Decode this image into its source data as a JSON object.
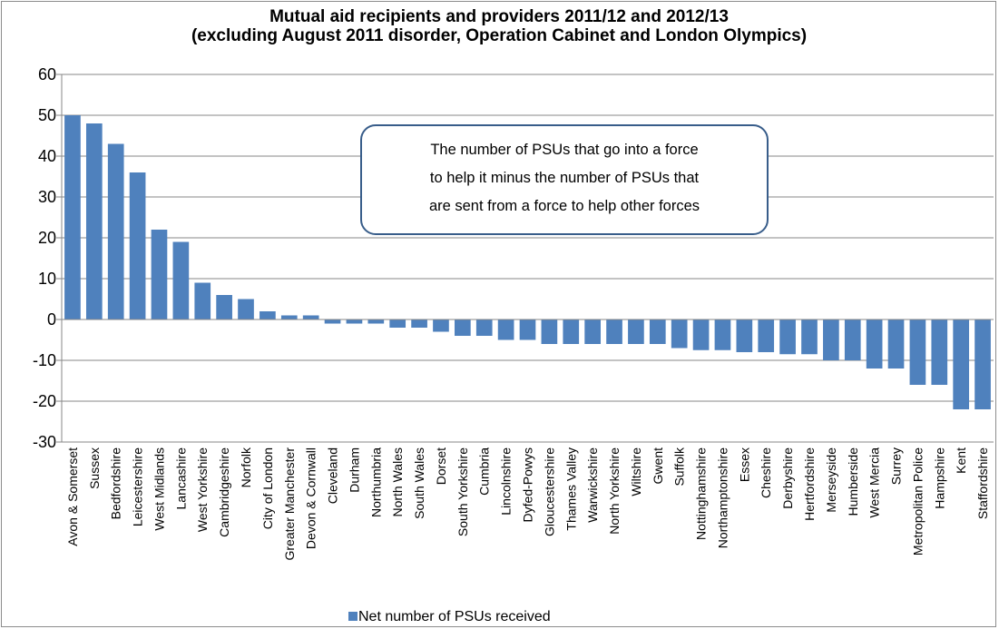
{
  "chart_data": {
    "type": "bar",
    "title": [
      "Mutual aid recipients and providers 2011/12 and 2012/13",
      "(excluding August 2011 disorder, Operation Cabinet and London Olympics)"
    ],
    "xlabel": "",
    "ylabel": "",
    "ylim": [
      -30,
      60
    ],
    "yticks": [
      60,
      50,
      40,
      30,
      20,
      10,
      0,
      -10,
      -20,
      -30
    ],
    "grid": true,
    "legend": "bottom",
    "bar_color": "#4f81bd",
    "categories": [
      "Avon & Somerset",
      "Sussex",
      "Bedfordshire",
      "Leicestershire",
      "West Midlands",
      "Lancashire",
      "West Yorkshire",
      "Cambridgeshire",
      "Norfolk",
      "City of London",
      "Greater Manchester",
      "Devon & Cornwall",
      "Cleveland",
      "Durham",
      "Northumbria",
      "North Wales",
      "South Wales",
      "Dorset",
      "South Yorkshire",
      "Cumbria",
      "Lincolnshire",
      "Dyfed-Powys",
      "Gloucestershire",
      "Thames Valley",
      "Warwickshire",
      "North Yorkshire",
      "Wiltshire",
      "Gwent",
      "Suffolk",
      "Nottinghamshire",
      "Northamptonshire",
      "Essex",
      "Cheshire",
      "Derbyshire",
      "Hertfordshire",
      "Merseyside",
      "Humberside",
      "West Mercia",
      "Surrey",
      "Metropolitan Police",
      "Hampshire",
      "Kent",
      "Staffordshire"
    ],
    "series": [
      {
        "name": "Net number of PSUs received",
        "values": [
          50,
          48,
          43,
          36,
          22,
          19,
          9,
          6,
          5,
          2,
          1,
          1,
          -1,
          -1,
          -1,
          -2,
          -2,
          -3,
          -4,
          -4,
          -5,
          -5,
          -6,
          -6,
          -6,
          -6,
          -6,
          -6,
          -7,
          -7.5,
          -7.5,
          -8,
          -8,
          -8.5,
          -8.5,
          -10,
          -10,
          -12,
          -12,
          -16,
          -16,
          -22,
          -22
        ]
      }
    ],
    "annotation": [
      "The number of PSUs that go into a force",
      "to help it minus the number of PSUs that",
      "are sent from a force to help other forces"
    ]
  }
}
